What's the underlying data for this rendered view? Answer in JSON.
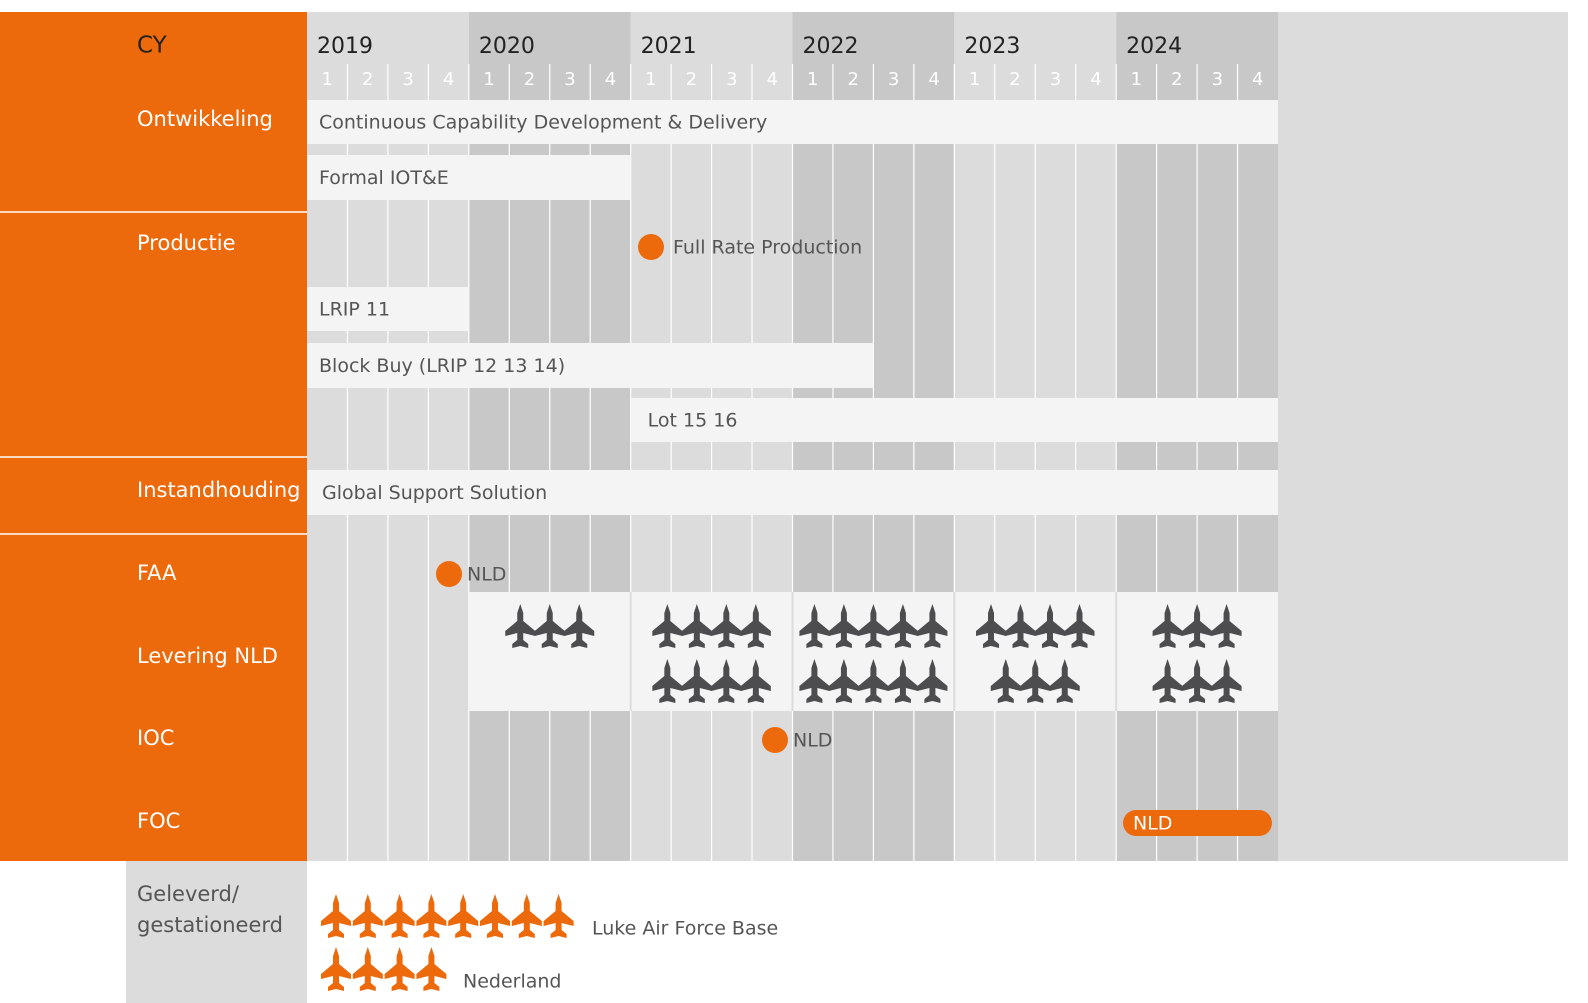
{
  "header": {
    "label": "CY",
    "years": [
      "2019",
      "2020",
      "2021",
      "2022",
      "2023",
      "2024"
    ],
    "quarters": [
      "1",
      "2",
      "3",
      "4"
    ]
  },
  "rows": [
    "Ontwikkeling",
    "Productie",
    "Instandhouding",
    "FAA",
    "Levering NLD",
    "IOC",
    "FOC"
  ],
  "bars": [
    {
      "label": "Continuous Capability Development & Delivery"
    },
    {
      "label": "Formal IOT&E"
    },
    {
      "label": "LRIP 11"
    },
    {
      "label": "Block Buy (LRIP 12 13 14)"
    },
    {
      "label": "Lot 15 16"
    },
    {
      "label": "Global Support Solution"
    }
  ],
  "milestones": [
    {
      "label": "Full Rate Production"
    },
    {
      "label": "NLD"
    },
    {
      "label": "NLD"
    },
    {
      "label": "NLD"
    }
  ],
  "deliveries": {
    "counts": [
      3,
      8,
      10,
      7,
      6
    ]
  },
  "delivered": {
    "label": [
      "Geleverd/",
      "gestationeerd"
    ],
    "locations": [
      {
        "name": "Luke Air Force Base",
        "count": 8
      },
      {
        "name": "Nederland",
        "count": 4
      }
    ]
  }
}
